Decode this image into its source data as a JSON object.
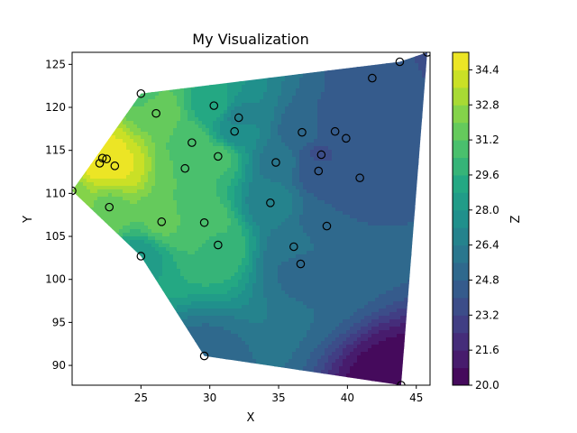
{
  "chart_data": {
    "type": "contourf",
    "title": "My Visualization",
    "xlabel": "X",
    "ylabel": "Y",
    "colorbar_label": "Z",
    "colormap": "viridis",
    "xlim": [
      20,
      46
    ],
    "ylim": [
      87.7,
      126.4
    ],
    "x_ticks": [
      "25",
      "30",
      "35",
      "40",
      "45"
    ],
    "y_ticks": [
      "90",
      "95",
      "100",
      "105",
      "110",
      "115",
      "120",
      "125"
    ],
    "colorbar_ticks": [
      "20.0",
      "21.6",
      "23.2",
      "24.8",
      "26.4",
      "28.0",
      "29.6",
      "31.2",
      "32.8",
      "34.4"
    ],
    "levels": [
      20.0,
      20.8,
      21.6,
      22.4,
      23.2,
      24.0,
      24.8,
      25.6,
      26.4,
      27.2,
      28.0,
      28.8,
      29.6,
      30.4,
      31.2,
      32.0,
      32.8,
      33.6,
      34.4,
      35.2
    ],
    "points": [
      {
        "x": 20.0,
        "y": 110.3,
        "z": 32.5
      },
      {
        "x": 22.0,
        "y": 113.5,
        "z": 34.8
      },
      {
        "x": 22.2,
        "y": 114.1,
        "z": 34.6
      },
      {
        "x": 22.5,
        "y": 114.0,
        "z": 34.7
      },
      {
        "x": 23.1,
        "y": 113.2,
        "z": 34.5
      },
      {
        "x": 22.7,
        "y": 108.4,
        "z": 31.8
      },
      {
        "x": 25.0,
        "y": 121.6,
        "z": 31.0
      },
      {
        "x": 26.1,
        "y": 119.3,
        "z": 31.8
      },
      {
        "x": 28.7,
        "y": 115.9,
        "z": 31.0
      },
      {
        "x": 28.2,
        "y": 112.9,
        "z": 31.2
      },
      {
        "x": 30.3,
        "y": 120.2,
        "z": 29.3
      },
      {
        "x": 30.6,
        "y": 114.3,
        "z": 30.6
      },
      {
        "x": 26.5,
        "y": 106.7,
        "z": 31.3
      },
      {
        "x": 29.6,
        "y": 106.6,
        "z": 31.0
      },
      {
        "x": 30.6,
        "y": 104.0,
        "z": 30.3
      },
      {
        "x": 25.0,
        "y": 102.7,
        "z": 28.5
      },
      {
        "x": 29.6,
        "y": 91.1,
        "z": 25.3
      },
      {
        "x": 32.1,
        "y": 118.8,
        "z": 27.0
      },
      {
        "x": 31.8,
        "y": 117.2,
        "z": 27.5
      },
      {
        "x": 34.8,
        "y": 113.6,
        "z": 26.2
      },
      {
        "x": 34.4,
        "y": 108.9,
        "z": 26.8
      },
      {
        "x": 36.7,
        "y": 117.1,
        "z": 25.2
      },
      {
        "x": 37.9,
        "y": 112.6,
        "z": 24.4
      },
      {
        "x": 38.1,
        "y": 114.5,
        "z": 23.9
      },
      {
        "x": 39.1,
        "y": 117.2,
        "z": 24.4
      },
      {
        "x": 39.9,
        "y": 116.4,
        "z": 24.2
      },
      {
        "x": 40.9,
        "y": 111.8,
        "z": 24.2
      },
      {
        "x": 38.5,
        "y": 106.2,
        "z": 24.8
      },
      {
        "x": 36.1,
        "y": 103.8,
        "z": 26.0
      },
      {
        "x": 36.6,
        "y": 101.8,
        "z": 25.3
      },
      {
        "x": 41.8,
        "y": 123.4,
        "z": 24.4
      },
      {
        "x": 43.8,
        "y": 125.3,
        "z": 24.2
      },
      {
        "x": 45.8,
        "y": 126.4,
        "z": 23.8
      },
      {
        "x": 43.9,
        "y": 87.7,
        "z": 20.0
      }
    ],
    "boundary": [
      [
        20.0,
        110.3
      ],
      [
        25.0,
        121.6
      ],
      [
        43.8,
        125.3
      ],
      [
        45.8,
        126.4
      ],
      [
        43.9,
        87.7
      ],
      [
        29.6,
        91.1
      ],
      [
        25.0,
        102.7
      ]
    ]
  }
}
